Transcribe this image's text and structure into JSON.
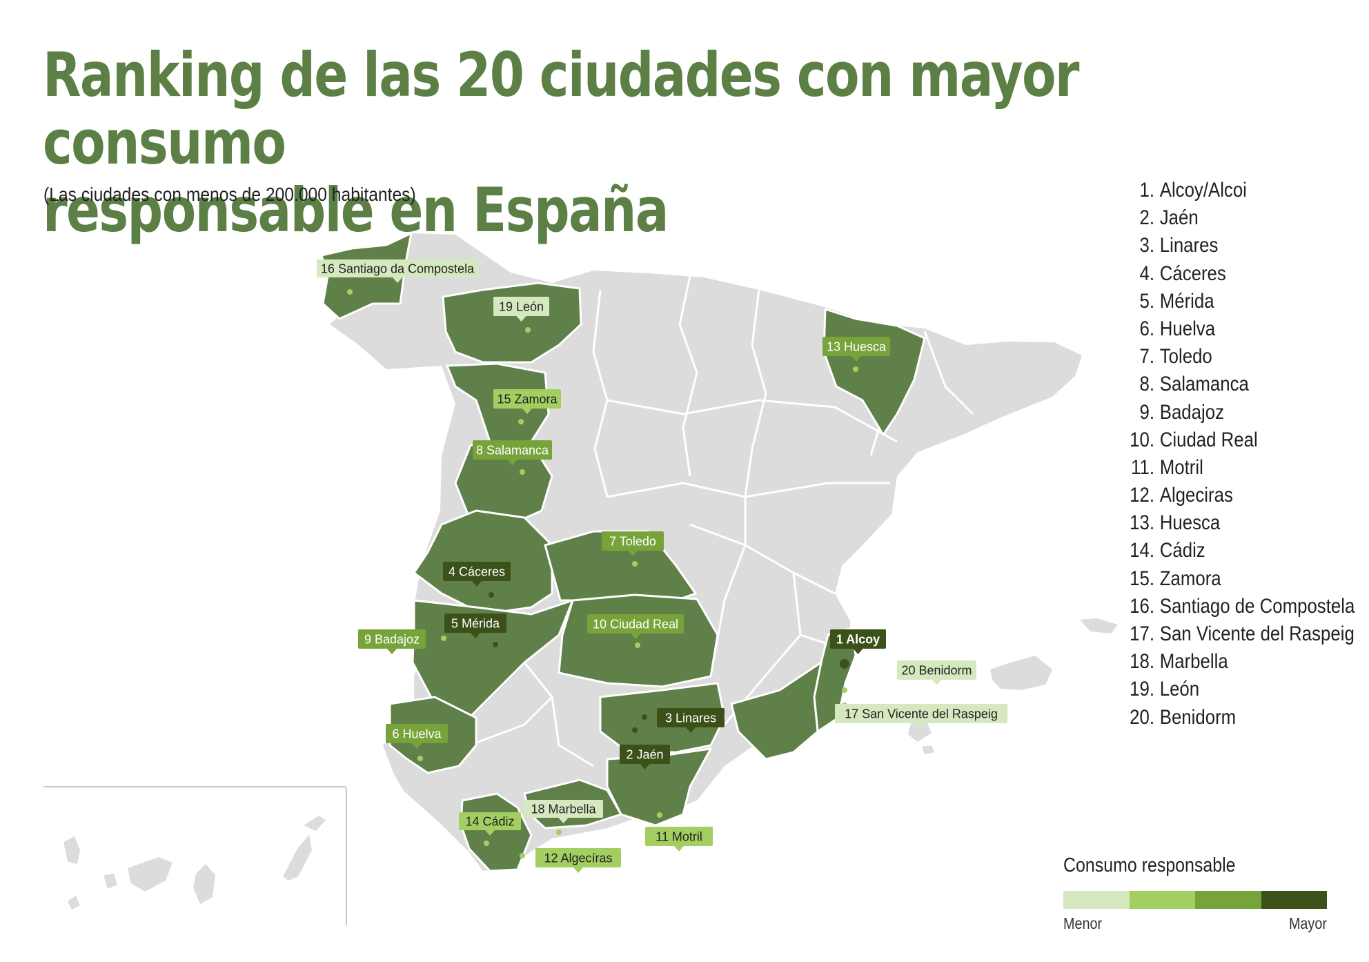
{
  "title": "Ranking de las 20 ciudades con mayor consumo\nresponsable en España",
  "subtitle": "(Las ciudades con menos de 200.000 habitantes)",
  "ranking": [
    {
      "n": "1.",
      "city": "Alcoy/Alcoi"
    },
    {
      "n": "2.",
      "city": "Jaén"
    },
    {
      "n": "3.",
      "city": "Linares"
    },
    {
      "n": "4.",
      "city": "Cáceres"
    },
    {
      "n": "5.",
      "city": "Mérida"
    },
    {
      "n": "6.",
      "city": "Huelva"
    },
    {
      "n": "7.",
      "city": "Toledo"
    },
    {
      "n": "8.",
      "city": "Salamanca"
    },
    {
      "n": "9.",
      "city": "Badajoz"
    },
    {
      "n": "10.",
      "city": "Ciudad Real"
    },
    {
      "n": "11.",
      "city": "Motril"
    },
    {
      "n": "12.",
      "city": "Algeciras"
    },
    {
      "n": "13.",
      "city": "Huesca"
    },
    {
      "n": "14.",
      "city": "Cádiz"
    },
    {
      "n": "15.",
      "city": "Zamora"
    },
    {
      "n": "16.",
      "city": "Santiago de Compostela"
    },
    {
      "n": "17.",
      "city": "San Vicente del Raspeig"
    },
    {
      "n": "18.",
      "city": "Marbella"
    },
    {
      "n": "19.",
      "city": "León"
    },
    {
      "n": "20.",
      "city": "Benidorm"
    }
  ],
  "map_labels": [
    {
      "text": "16 Santiago da Compostela",
      "level": 1
    },
    {
      "text": "19 León",
      "level": 1
    },
    {
      "text": "13 Huesca",
      "level": 3
    },
    {
      "text": "15 Zamora",
      "level": 2
    },
    {
      "text": "8 Salamanca",
      "level": 3
    },
    {
      "text": "7 Toledo",
      "level": 3
    },
    {
      "text": "4 Cáceres",
      "level": 4
    },
    {
      "text": "5 Mérida",
      "level": 4
    },
    {
      "text": "9 Badajoz",
      "level": 3
    },
    {
      "text": "10 Ciudad Real",
      "level": 3
    },
    {
      "text": "1 Alcoy",
      "level": 4
    },
    {
      "text": "20 Benidorm",
      "level": 1
    },
    {
      "text": "17  San Vicente del Raspeig",
      "level": 1
    },
    {
      "text": "3 Linares",
      "level": 4
    },
    {
      "text": "2 Jaén",
      "level": 4
    },
    {
      "text": "6 Huelva",
      "level": 3
    },
    {
      "text": "14 Cádiz",
      "level": 2
    },
    {
      "text": "18 Marbella",
      "level": 1
    },
    {
      "text": "11 Motril",
      "level": 2
    },
    {
      "text": "12 Algecíras",
      "level": 2
    }
  ],
  "legend": {
    "title": "Consumo responsable",
    "min_label": "Menor",
    "max_label": "Mayor",
    "colors": [
      "#d6e8bf",
      "#a3cf62",
      "#76a33a",
      "#3b5119"
    ]
  },
  "colors": {
    "title": "#5b7f44",
    "highlighted_region": "#5f8049",
    "other_region": "#dcdcdc",
    "border": "#ffffff"
  }
}
